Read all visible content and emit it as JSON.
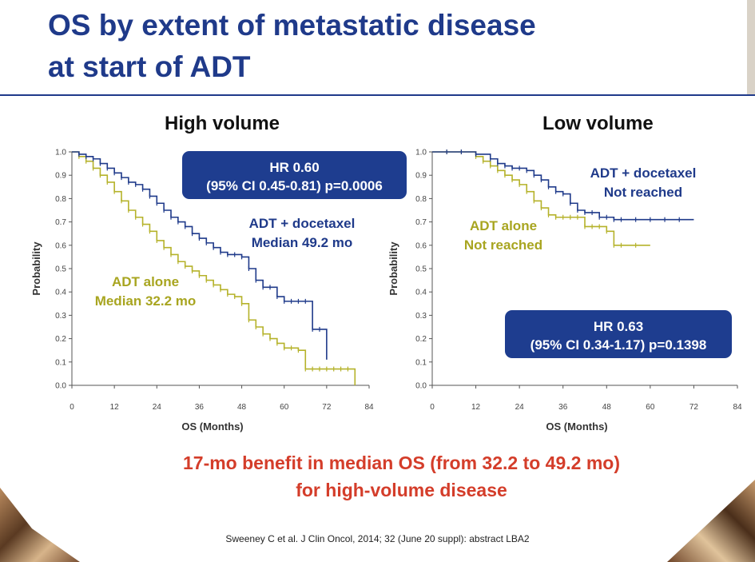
{
  "slide": {
    "title_line1": "OS by extent of metastatic disease",
    "title_line2": "at start of ADT",
    "takeaway_line1": "17-mo benefit in median OS (from 32.2 to 49.2 mo)",
    "takeaway_line2": "for high-volume disease",
    "citation": "Sweeney C et al. J Clin Oncol, 2014; 32 (June 20 suppl): abstract LBA2"
  },
  "colors": {
    "docetaxel": "#1f3a8a",
    "adt_alone": "#b5b22a",
    "accent": "#d43d2a"
  },
  "chart_data": [
    {
      "type": "line",
      "title": "High volume",
      "xlabel": "OS (Months)",
      "ylabel": "Probability",
      "xlim": [
        0,
        84
      ],
      "ylim": [
        0,
        1.0
      ],
      "xticks": [
        "0",
        "12",
        "24",
        "36",
        "48",
        "60",
        "72",
        "84"
      ],
      "yticks": [
        "0.0",
        "0.1",
        "0.2",
        "0.3",
        "0.4",
        "0.5",
        "0.6",
        "0.7",
        "0.8",
        "0.9",
        "1.0"
      ],
      "step": true,
      "hr_box_line1": "HR 0.60",
      "hr_box_line2": "(95% CI 0.45-0.81) p=0.0006",
      "series": [
        {
          "name": "ADT + docetaxel",
          "label_line1": "ADT + docetaxel",
          "label_line2": "Median 49.2 mo",
          "color": "#1f3a8a",
          "x": [
            0,
            2,
            4,
            6,
            8,
            10,
            12,
            14,
            16,
            18,
            20,
            22,
            24,
            26,
            28,
            30,
            32,
            34,
            36,
            38,
            40,
            42,
            44,
            46,
            48,
            50,
            52,
            54,
            56,
            58,
            60,
            62,
            64,
            66,
            68,
            70,
            72
          ],
          "y": [
            1.0,
            0.99,
            0.98,
            0.97,
            0.95,
            0.93,
            0.91,
            0.89,
            0.87,
            0.86,
            0.84,
            0.81,
            0.78,
            0.75,
            0.72,
            0.7,
            0.68,
            0.65,
            0.63,
            0.61,
            0.59,
            0.57,
            0.56,
            0.56,
            0.55,
            0.5,
            0.45,
            0.42,
            0.42,
            0.38,
            0.36,
            0.36,
            0.36,
            0.36,
            0.24,
            0.24,
            0.11
          ]
        },
        {
          "name": "ADT alone",
          "label_line1": "ADT alone",
          "label_line2": "Median 32.2 mo",
          "color": "#b5b22a",
          "x": [
            0,
            2,
            4,
            6,
            8,
            10,
            12,
            14,
            16,
            18,
            20,
            22,
            24,
            26,
            28,
            30,
            32,
            34,
            36,
            38,
            40,
            42,
            44,
            46,
            48,
            50,
            52,
            54,
            56,
            58,
            60,
            62,
            64,
            66,
            68,
            70,
            72,
            74,
            76,
            78,
            80
          ],
          "y": [
            1.0,
            0.98,
            0.96,
            0.93,
            0.9,
            0.87,
            0.83,
            0.79,
            0.75,
            0.72,
            0.69,
            0.66,
            0.62,
            0.59,
            0.56,
            0.53,
            0.51,
            0.49,
            0.47,
            0.45,
            0.43,
            0.41,
            0.39,
            0.38,
            0.35,
            0.28,
            0.25,
            0.22,
            0.2,
            0.18,
            0.16,
            0.16,
            0.15,
            0.07,
            0.07,
            0.07,
            0.07,
            0.07,
            0.07,
            0.07,
            0.0
          ]
        }
      ]
    },
    {
      "type": "line",
      "title": "Low volume",
      "xlabel": "OS (Months)",
      "ylabel": "Probability",
      "xlim": [
        0,
        84
      ],
      "ylim": [
        0,
        1.0
      ],
      "xticks": [
        "0",
        "12",
        "24",
        "36",
        "48",
        "60",
        "72",
        "84"
      ],
      "yticks": [
        "0.0",
        "0.1",
        "0.2",
        "0.3",
        "0.4",
        "0.5",
        "0.6",
        "0.7",
        "0.8",
        "0.9",
        "1.0"
      ],
      "step": true,
      "hr_box_line1": "HR 0.63",
      "hr_box_line2": "(95% CI 0.34-1.17) p=0.1398",
      "series": [
        {
          "name": "ADT + docetaxel",
          "label_line1": "ADT + docetaxel",
          "label_line2": "Not reached",
          "color": "#1f3a8a",
          "x": [
            0,
            4,
            8,
            12,
            16,
            18,
            20,
            22,
            24,
            26,
            28,
            30,
            32,
            34,
            36,
            38,
            40,
            42,
            44,
            46,
            48,
            50,
            52,
            56,
            60,
            64,
            68,
            72
          ],
          "y": [
            1.0,
            1.0,
            1.0,
            0.99,
            0.97,
            0.95,
            0.94,
            0.93,
            0.93,
            0.92,
            0.9,
            0.88,
            0.85,
            0.83,
            0.82,
            0.78,
            0.75,
            0.74,
            0.74,
            0.72,
            0.72,
            0.71,
            0.71,
            0.71,
            0.71,
            0.71,
            0.71,
            0.71
          ]
        },
        {
          "name": "ADT alone",
          "label_line1": "ADT alone",
          "label_line2": "Not reached",
          "color": "#b5b22a",
          "x": [
            0,
            4,
            8,
            12,
            14,
            16,
            18,
            20,
            22,
            24,
            26,
            28,
            30,
            32,
            34,
            36,
            38,
            40,
            42,
            44,
            46,
            48,
            50,
            52,
            56,
            60
          ],
          "y": [
            1.0,
            1.0,
            1.0,
            0.98,
            0.96,
            0.94,
            0.92,
            0.9,
            0.88,
            0.86,
            0.83,
            0.79,
            0.76,
            0.73,
            0.72,
            0.72,
            0.72,
            0.72,
            0.68,
            0.68,
            0.68,
            0.66,
            0.6,
            0.6,
            0.6,
            0.6
          ]
        }
      ]
    }
  ]
}
